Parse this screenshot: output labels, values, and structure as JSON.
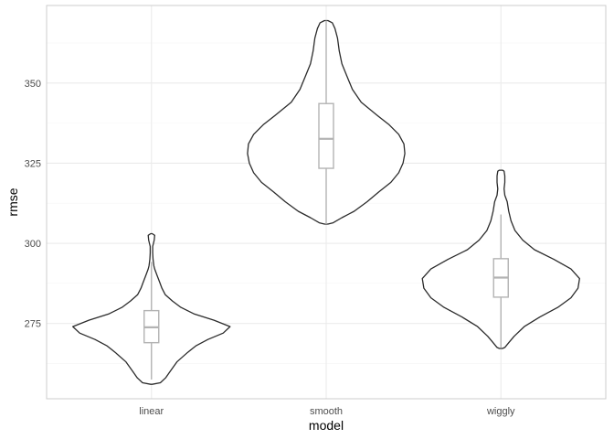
{
  "chart_data": {
    "type": "violin",
    "xlabel": "model",
    "ylabel": "rmse",
    "categories": [
      "linear",
      "smooth",
      "wiggly"
    ],
    "ylim": [
      251.5,
      374.2
    ],
    "y_ticks": [
      275,
      300,
      325,
      350
    ],
    "y_minor_ticks": [
      262.5,
      287.5,
      312.5,
      337.5,
      362.5
    ],
    "grid": true,
    "colors": {
      "violin_outline": "#2b2b2b",
      "box": "#b3b3b3",
      "grid_major": "#ebebeb",
      "grid_minor": "#f5f5f5",
      "panel_border": "#cccccc"
    },
    "violins": [
      {
        "category": "linear",
        "box": {
          "min": 257.5,
          "q1": 269,
          "median": 273.8,
          "q3": 279,
          "max": 294.2
        },
        "density": [
          [
            256,
            0.02
          ],
          [
            256.5,
            0.22
          ],
          [
            258,
            0.35
          ],
          [
            260,
            0.46
          ],
          [
            263,
            0.63
          ],
          [
            266,
            0.9
          ],
          [
            268,
            1.1
          ],
          [
            270,
            1.4
          ],
          [
            272,
            1.78
          ],
          [
            274,
            1.95
          ],
          [
            276,
            1.55
          ],
          [
            278,
            1.05
          ],
          [
            280,
            0.73
          ],
          [
            282,
            0.52
          ],
          [
            284,
            0.34
          ],
          [
            286,
            0.26
          ],
          [
            288,
            0.2
          ],
          [
            290,
            0.14
          ],
          [
            292,
            0.08
          ],
          [
            293,
            0.06
          ],
          [
            295,
            0.04
          ],
          [
            297,
            0.03
          ],
          [
            299,
            0.03
          ],
          [
            301,
            0.07
          ],
          [
            302.5,
            0.08
          ],
          [
            303,
            0.02
          ]
        ]
      },
      {
        "category": "smooth",
        "box": {
          "min": 306,
          "q1": 323.4,
          "median": 332.6,
          "q3": 343.6,
          "max": 369.5
        },
        "density": [
          [
            306,
            0.02
          ],
          [
            306.4,
            0.08
          ],
          [
            308,
            0.18
          ],
          [
            310,
            0.32
          ],
          [
            313,
            0.47
          ],
          [
            316,
            0.6
          ],
          [
            319,
            0.74
          ],
          [
            322,
            0.83
          ],
          [
            325,
            0.88
          ],
          [
            328,
            0.9
          ],
          [
            331,
            0.89
          ],
          [
            334,
            0.83
          ],
          [
            337,
            0.72
          ],
          [
            340,
            0.58
          ],
          [
            344,
            0.4
          ],
          [
            348,
            0.3
          ],
          [
            352,
            0.24
          ],
          [
            356,
            0.18
          ],
          [
            360,
            0.15
          ],
          [
            364,
            0.13
          ],
          [
            367,
            0.1
          ],
          [
            368.8,
            0.07
          ],
          [
            369.5,
            0.02
          ]
        ]
      },
      {
        "category": "wiggly",
        "box": {
          "min": 267.5,
          "q1": 283.2,
          "median": 289.3,
          "q3": 295.2,
          "max": 309
        },
        "density": [
          [
            267.2,
            0.02
          ],
          [
            267.5,
            0.05
          ],
          [
            269,
            0.1
          ],
          [
            271,
            0.17
          ],
          [
            274,
            0.3
          ],
          [
            277,
            0.5
          ],
          [
            280,
            0.73
          ],
          [
            283,
            0.9
          ],
          [
            286,
            0.99
          ],
          [
            289,
            1.01
          ],
          [
            292,
            0.9
          ],
          [
            295,
            0.68
          ],
          [
            298,
            0.43
          ],
          [
            301,
            0.28
          ],
          [
            304,
            0.18
          ],
          [
            307,
            0.13
          ],
          [
            310,
            0.1
          ],
          [
            313,
            0.08
          ],
          [
            315,
            0.05
          ],
          [
            317,
            0.04
          ],
          [
            319,
            0.05
          ],
          [
            321,
            0.05
          ],
          [
            322.5,
            0.04
          ],
          [
            322.8,
            0.02
          ]
        ]
      }
    ]
  }
}
